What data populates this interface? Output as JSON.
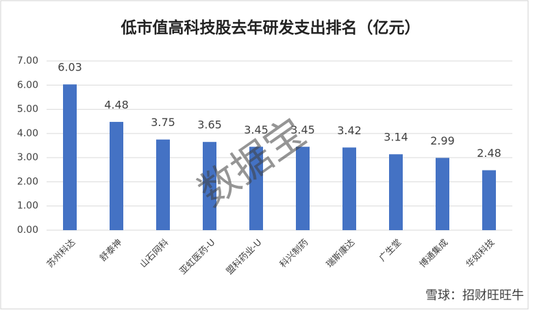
{
  "chart_data": {
    "type": "bar",
    "title": "低市值高科技股去年研发支出排名（亿元）",
    "categories": [
      "苏州科达",
      "舒泰神",
      "山石网科",
      "亚虹医药-U",
      "盟科药业-U",
      "科兴制药",
      "瑞斯康达",
      "广生堂",
      "博通集成",
      "华如科技"
    ],
    "values": [
      6.03,
      4.48,
      3.75,
      3.65,
      3.45,
      3.45,
      3.42,
      3.14,
      2.99,
      2.48
    ],
    "color": "#4472c4",
    "ylim": [
      0,
      7
    ],
    "yticks": [
      {
        "value": 0,
        "label": "0.00"
      },
      {
        "value": 1,
        "label": "1.00"
      },
      {
        "value": 2,
        "label": "2.00"
      },
      {
        "value": 3,
        "label": "3.00"
      },
      {
        "value": 4,
        "label": "4.00"
      },
      {
        "value": 5,
        "label": "5.00"
      },
      {
        "value": 6,
        "label": "6.00"
      },
      {
        "value": 7,
        "label": "7.00"
      }
    ],
    "grid": true,
    "watermark": "数据宝",
    "source": "雪球：招财旺旺牛"
  }
}
